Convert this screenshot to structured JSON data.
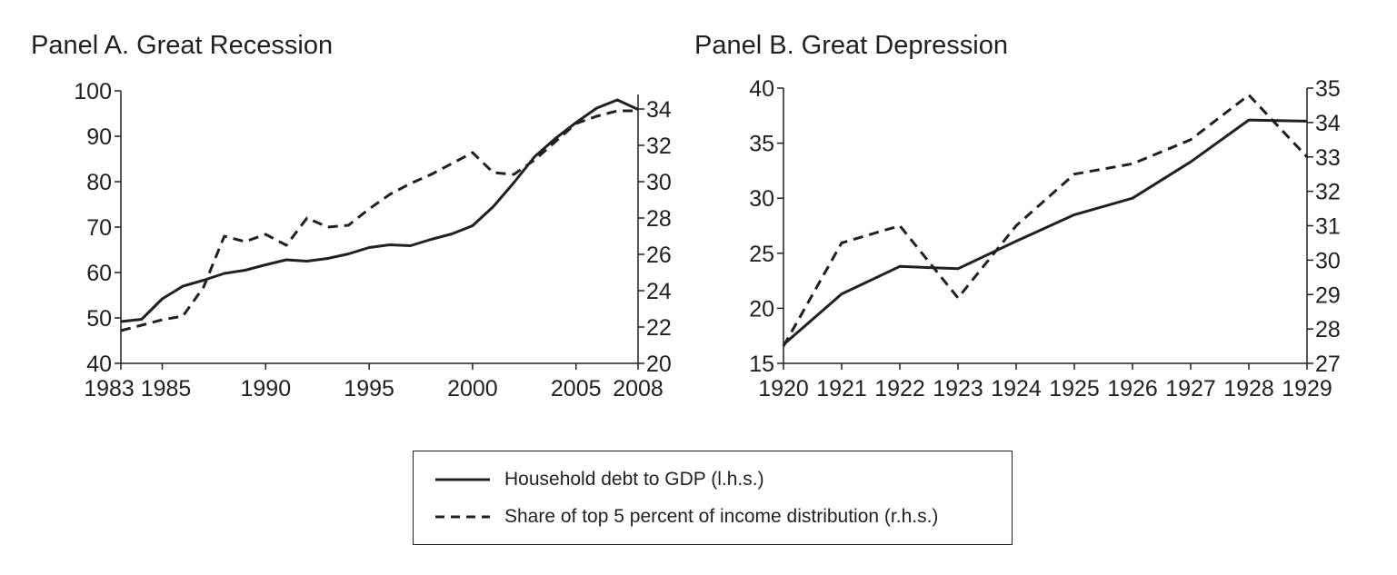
{
  "panels": [
    {
      "title": "Panel A. Great Recession",
      "x_tick_labels": [
        "1983",
        "1985",
        "1990",
        "1995",
        "2000",
        "2005",
        "2008"
      ],
      "left_tick_labels": [
        "100",
        "90",
        "80",
        "70",
        "60",
        "50",
        "40"
      ],
      "right_tick_labels": [
        "34",
        "32",
        "30",
        "28",
        "26",
        "24",
        "22",
        "20"
      ]
    },
    {
      "title": "Panel B. Great Depression",
      "x_tick_labels": [
        "1920",
        "1921",
        "1922",
        "1923",
        "1924",
        "1925",
        "1926",
        "1927",
        "1928",
        "1929"
      ],
      "left_tick_labels": [
        "40",
        "35",
        "30",
        "25",
        "20",
        "15"
      ],
      "right_tick_labels": [
        "35",
        "34",
        "33",
        "32",
        "31",
        "30",
        "29",
        "28",
        "27"
      ]
    }
  ],
  "legend": {
    "items": [
      {
        "label": "Household debt to GDP (l.h.s.)",
        "style": "solid"
      },
      {
        "label": "Share of top 5 percent of income distribution (r.h.s.)",
        "style": "dashed"
      }
    ]
  },
  "colors": {
    "line": "#231f20"
  },
  "chart_data": [
    {
      "type": "line",
      "title": "Panel A. Great Recession",
      "x": [
        1983,
        1984,
        1985,
        1986,
        1987,
        1988,
        1989,
        1990,
        1991,
        1992,
        1993,
        1994,
        1995,
        1996,
        1997,
        1998,
        1999,
        2000,
        2001,
        2002,
        2003,
        2004,
        2005,
        2006,
        2007,
        2008
      ],
      "x_ticks": [
        1983,
        1985,
        1990,
        1995,
        2000,
        2005,
        2008
      ],
      "xlim": [
        1983,
        2008
      ],
      "ylim_left": [
        40,
        100
      ],
      "ylim_right": [
        20,
        35
      ],
      "left_ticks": [
        40,
        50,
        60,
        70,
        80,
        90,
        100
      ],
      "right_ticks": [
        20,
        22,
        24,
        26,
        28,
        30,
        32,
        34
      ],
      "series": [
        {
          "name": "Household debt to GDP (l.h.s.)",
          "axis": "left",
          "style": "solid",
          "values": [
            49.2,
            49.7,
            54.2,
            57.0,
            58.3,
            59.8,
            60.5,
            61.7,
            62.8,
            62.5,
            63.1,
            64.1,
            65.5,
            66.1,
            65.9,
            67.3,
            68.5,
            70.3,
            74.5,
            79.8,
            85.5,
            89.5,
            93.0,
            96.2,
            98.0,
            95.9
          ]
        },
        {
          "name": "Share of top 5 percent of income distribution (r.h.s.)",
          "axis": "right",
          "style": "dashed",
          "values": [
            21.8,
            22.1,
            22.4,
            22.6,
            24.2,
            27.0,
            26.7,
            27.1,
            26.5,
            28.0,
            27.5,
            27.6,
            28.5,
            29.3,
            29.9,
            30.4,
            31.0,
            31.6,
            30.5,
            30.4,
            31.2,
            32.2,
            33.2,
            33.6,
            33.9,
            33.9
          ]
        }
      ]
    },
    {
      "type": "line",
      "title": "Panel B. Great Depression",
      "x": [
        1920,
        1921,
        1922,
        1923,
        1924,
        1925,
        1926,
        1927,
        1928,
        1929
      ],
      "x_ticks": [
        1920,
        1921,
        1922,
        1923,
        1924,
        1925,
        1926,
        1927,
        1928,
        1929
      ],
      "xlim": [
        1920,
        1929
      ],
      "ylim_left": [
        15,
        40
      ],
      "ylim_right": [
        27,
        35
      ],
      "left_ticks": [
        15,
        20,
        25,
        30,
        35,
        40
      ],
      "right_ticks": [
        27,
        28,
        29,
        30,
        31,
        32,
        33,
        34,
        35
      ],
      "series": [
        {
          "name": "Household debt to GDP (l.h.s.)",
          "axis": "left",
          "style": "solid",
          "values": [
            16.7,
            21.3,
            23.8,
            23.6,
            26.1,
            28.5,
            30.0,
            33.3,
            37.1,
            37.0
          ]
        },
        {
          "name": "Share of top 5 percent of income distribution (r.h.s.)",
          "axis": "right",
          "style": "dashed",
          "values": [
            27.5,
            30.5,
            31.0,
            28.9,
            31.0,
            32.5,
            32.8,
            33.5,
            34.8,
            33.0
          ]
        }
      ]
    }
  ]
}
